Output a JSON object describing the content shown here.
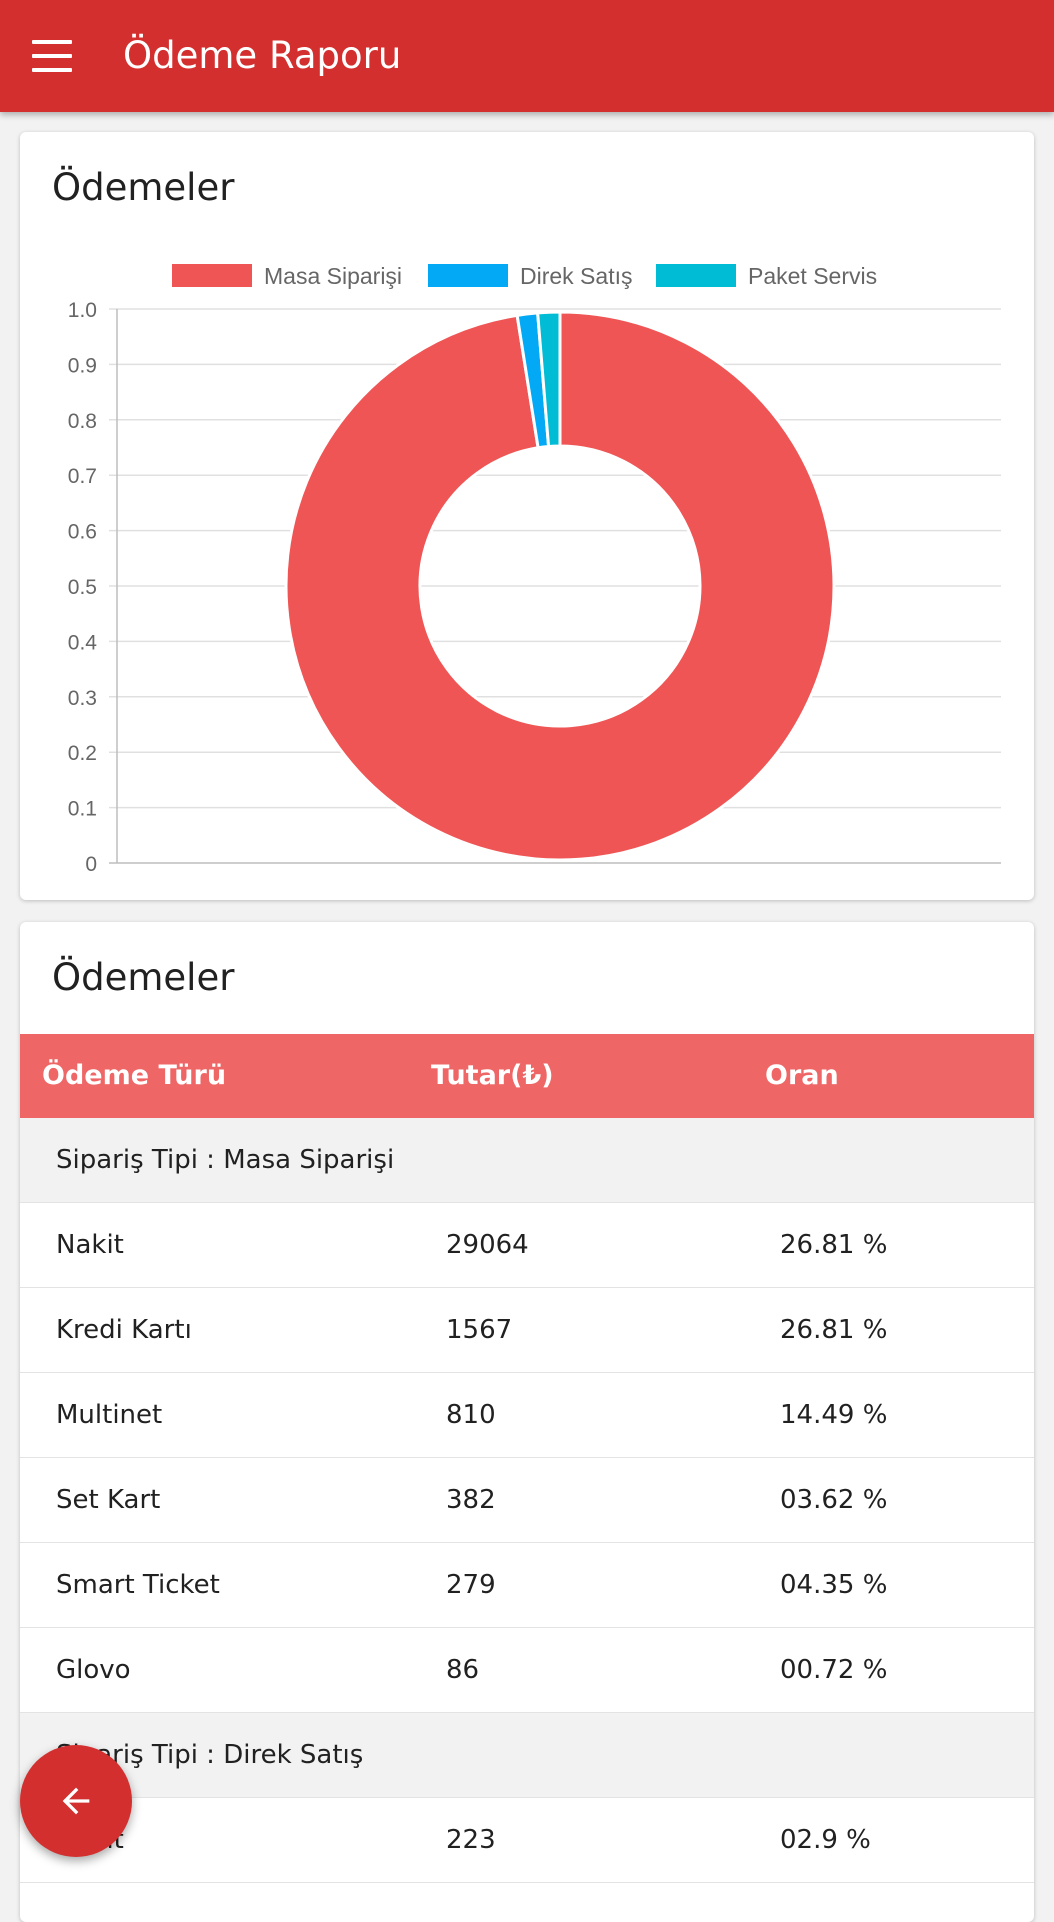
{
  "appbar": {
    "title": "Ödeme Raporu",
    "menu_icon": "hamburger-menu-icon"
  },
  "chart_card": {
    "title": "Ödemeler"
  },
  "chart_data": {
    "type": "pie",
    "variant": "doughnut",
    "labels": [
      "Masa Siparişi",
      "Direk Satış",
      "Paket Servis"
    ],
    "values": [
      0.975,
      0.012,
      0.013
    ],
    "colors": [
      "#ef5555",
      "#03a9f4",
      "#00bcd4"
    ],
    "legend_position": "top",
    "y_ticks": [
      "1.0",
      "0.9",
      "0.8",
      "0.7",
      "0.6",
      "0.5",
      "0.4",
      "0.3",
      "0.2",
      "0.1",
      "0"
    ],
    "grid": true
  },
  "table_card": {
    "title": "Ödemeler",
    "headers": [
      "Ödeme Türü",
      "Tutar(₺)",
      "Oran"
    ],
    "rows": [
      {
        "kind": "group",
        "text": "Sipariş Tipi : Masa Siparişi"
      },
      {
        "kind": "data",
        "type": "Nakit",
        "amount": "29064",
        "ratio": "26.81 %"
      },
      {
        "kind": "data",
        "type": "Kredi Kartı",
        "amount": "1567",
        "ratio": "26.81 %"
      },
      {
        "kind": "data",
        "type": "Multinet",
        "amount": "810",
        "ratio": "14.49 %"
      },
      {
        "kind": "data",
        "type": "Set Kart",
        "amount": "382",
        "ratio": "03.62 %"
      },
      {
        "kind": "data",
        "type": "Smart Ticket",
        "amount": "279",
        "ratio": "04.35 %"
      },
      {
        "kind": "data",
        "type": "Glovo",
        "amount": "86",
        "ratio": "00.72 %"
      },
      {
        "kind": "group",
        "text": "Sipariş Tipi : Direk Satış"
      },
      {
        "kind": "data",
        "type": "Nakit",
        "amount": "223",
        "ratio": "02.9 %"
      }
    ]
  },
  "fab": {
    "icon": "arrow-left-icon"
  }
}
